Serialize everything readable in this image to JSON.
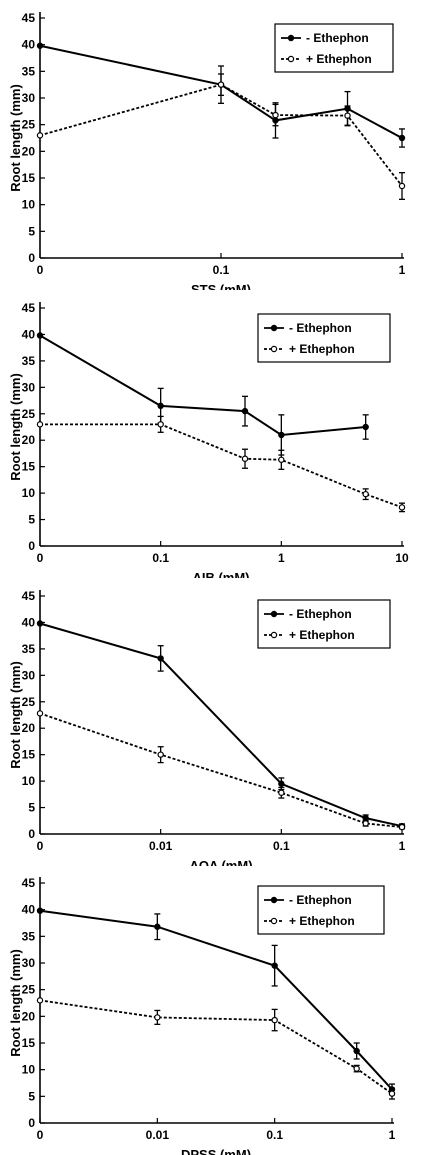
{
  "chart_data": [
    {
      "type": "line",
      "xlabel": "STS (mM)",
      "ylabel": "Root length (mm)",
      "ylim": [
        0,
        45
      ],
      "yticks": [
        0,
        5,
        10,
        15,
        20,
        25,
        30,
        35,
        40,
        45
      ],
      "xticks": [
        "0",
        "0.1",
        "1"
      ],
      "x": [
        0,
        0.1,
        0.2,
        0.5,
        1
      ],
      "legend_position": "top-right",
      "series": [
        {
          "name": "- Ethephon",
          "values": [
            39.8,
            32.5,
            25.8,
            28.0,
            22.5
          ],
          "errors": [
            0,
            3.5,
            3.3,
            3.2,
            1.7
          ],
          "style": "solid",
          "marker": "filled"
        },
        {
          "name": "+ Ethephon",
          "values": [
            23.0,
            32.5,
            26.8,
            26.7,
            13.5
          ],
          "errors": [
            0,
            2.0,
            2.0,
            1.8,
            2.5
          ],
          "style": "dotted",
          "marker": "open"
        }
      ]
    },
    {
      "type": "line",
      "xlabel": "AIB (mM)",
      "ylabel": "Root length (mm)",
      "ylim": [
        0,
        45
      ],
      "yticks": [
        0,
        5,
        10,
        15,
        20,
        25,
        30,
        35,
        40,
        45
      ],
      "xticks": [
        "0",
        "0.1",
        "1",
        "10"
      ],
      "x": [
        0,
        0.1,
        0.5,
        1,
        5,
        10
      ],
      "legend_position": "top-right",
      "series": [
        {
          "name": "- Ethephon",
          "values": [
            39.8,
            26.5,
            25.5,
            21.0,
            22.5,
            null
          ],
          "errors": [
            0,
            3.3,
            2.8,
            3.8,
            2.3,
            null
          ],
          "style": "solid",
          "marker": "filled"
        },
        {
          "name": "+ Ethephon",
          "values": [
            23.0,
            23.0,
            16.5,
            16.3,
            9.8,
            7.3
          ],
          "errors": [
            0,
            1.5,
            1.8,
            1.8,
            1.0,
            0.8
          ],
          "style": "dotted",
          "marker": "open"
        }
      ]
    },
    {
      "type": "line",
      "xlabel": "AOA (mM)",
      "ylabel": "Root length (mm)",
      "ylim": [
        0,
        45
      ],
      "yticks": [
        0,
        5,
        10,
        15,
        20,
        25,
        30,
        35,
        40,
        45
      ],
      "xticks": [
        "0",
        "0.01",
        "0.1",
        "1"
      ],
      "x": [
        0,
        0.01,
        0.1,
        0.5,
        1
      ],
      "legend_position": "top-right",
      "series": [
        {
          "name": "- Ethephon",
          "values": [
            39.8,
            33.2,
            9.5,
            3.0,
            1.5
          ],
          "errors": [
            0,
            2.4,
            1.1,
            0.6,
            0.4
          ],
          "style": "solid",
          "marker": "filled"
        },
        {
          "name": "+ Ethephon",
          "values": [
            22.8,
            15.0,
            7.8,
            2.0,
            1.3
          ],
          "errors": [
            0,
            1.5,
            1.0,
            0.5,
            0.3
          ],
          "style": "dotted",
          "marker": "open"
        }
      ]
    },
    {
      "type": "line",
      "xlabel": "DPSS (mM)",
      "ylabel": "Root length (mm)",
      "ylim": [
        0,
        45
      ],
      "yticks": [
        0,
        5,
        10,
        15,
        20,
        25,
        30,
        35,
        40,
        45
      ],
      "xticks": [
        "0",
        "0.01",
        "0.1",
        "1"
      ],
      "x": [
        0,
        0.01,
        0.1,
        0.5,
        1
      ],
      "legend_position": "top-right",
      "series": [
        {
          "name": "- Ethephon",
          "values": [
            39.8,
            36.8,
            29.5,
            13.5,
            6.3
          ],
          "errors": [
            0,
            2.4,
            3.8,
            1.5,
            1.0
          ],
          "style": "solid",
          "marker": "filled"
        },
        {
          "name": "+ Ethephon",
          "values": [
            23.0,
            19.8,
            19.3,
            10.2,
            5.5
          ],
          "errors": [
            0,
            1.3,
            2.0,
            0.6,
            1.0
          ],
          "style": "dotted",
          "marker": "open"
        }
      ]
    }
  ]
}
